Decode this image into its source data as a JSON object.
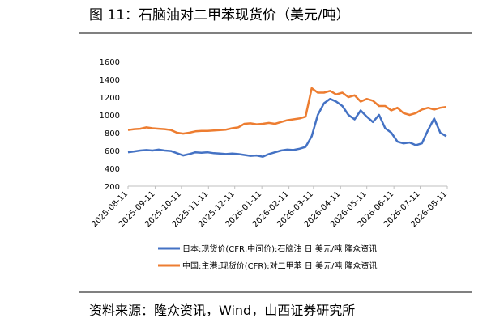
{
  "chart_data": {
    "type": "line",
    "title": "图 11：石脑油对二甲苯现货价（美元/吨）",
    "source": "资料来源：隆众资讯，Wind，山西证券研究所",
    "x": [
      "2025-08-11",
      "2025-08-18",
      "2025-08-25",
      "2025-09-01",
      "2025-09-08",
      "2025-09-15",
      "2025-09-22",
      "2025-09-29",
      "2025-10-06",
      "2025-10-13",
      "2025-10-20",
      "2025-10-27",
      "2025-11-03",
      "2025-11-10",
      "2025-11-17",
      "2025-11-24",
      "2025-12-01",
      "2025-12-08",
      "2025-12-15",
      "2025-12-22",
      "2025-12-29",
      "2026-01-05",
      "2026-01-12",
      "2026-01-19",
      "2026-01-26",
      "2026-02-02",
      "2026-02-09",
      "2026-02-16",
      "2026-02-23",
      "2026-03-02",
      "2026-03-09",
      "2026-03-16",
      "2026-03-23",
      "2026-03-30",
      "2026-04-06",
      "2026-04-13",
      "2026-04-20",
      "2026-04-27",
      "2026-05-04",
      "2026-05-11",
      "2026-05-18",
      "2026-05-25",
      "2026-06-01",
      "2026-06-08",
      "2026-06-15",
      "2026-06-22",
      "2026-06-29",
      "2026-07-06",
      "2026-07-13",
      "2026-07-20",
      "2026-07-27",
      "2026-08-03",
      "2026-08-10"
    ],
    "series": [
      {
        "name": "日本:现货价(CFR,中间价):石脑油 日 美元/吨 隆众资讯",
        "color": "#4472c4",
        "values": [
          580,
          590,
          600,
          605,
          600,
          610,
          600,
          595,
          570,
          545,
          560,
          580,
          575,
          580,
          570,
          565,
          560,
          565,
          560,
          550,
          540,
          545,
          530,
          560,
          580,
          600,
          610,
          605,
          620,
          640,
          760,
          1000,
          1130,
          1180,
          1150,
          1100,
          1000,
          950,
          1050,
          980,
          920,
          1000,
          850,
          800,
          700,
          680,
          690,
          660,
          680,
          830,
          960,
          800,
          760
        ]
      },
      {
        "name": "中国:主港:现货价(CFR):对二甲苯 日 美元/吨 隆众资讯",
        "color": "#ed7d31",
        "values": [
          830,
          840,
          845,
          860,
          850,
          845,
          840,
          830,
          800,
          790,
          800,
          815,
          820,
          820,
          825,
          830,
          835,
          850,
          860,
          900,
          905,
          895,
          900,
          910,
          900,
          920,
          940,
          950,
          960,
          980,
          1300,
          1250,
          1250,
          1270,
          1230,
          1250,
          1200,
          1220,
          1150,
          1180,
          1160,
          1100,
          1100,
          1050,
          1080,
          1020,
          1000,
          1020,
          1060,
          1080,
          1060,
          1080,
          1090
        ]
      }
    ],
    "xlim": [
      "2025-08-11",
      "2026-08-11"
    ],
    "xticks": [
      "2025-08-11",
      "2025-09-11",
      "2025-10-11",
      "2025-11-11",
      "2025-12-11",
      "2026-01-11",
      "2026-02-11",
      "2026-03-11",
      "2026-04-11",
      "2026-05-11",
      "2026-06-11",
      "2026-07-11",
      "2026-08-11"
    ],
    "ylim": [
      200,
      1600
    ],
    "yticks": [
      200,
      400,
      600,
      800,
      1000,
      1200,
      1400,
      1600
    ],
    "grid": false
  }
}
